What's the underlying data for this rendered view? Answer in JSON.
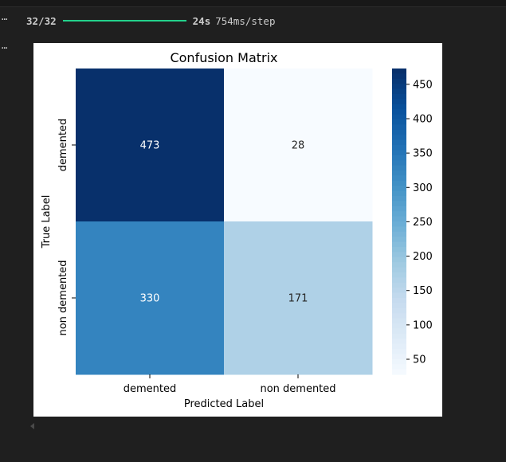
{
  "output": {
    "gutter_glyph": "⋯",
    "progress": {
      "steps": "32/32",
      "fraction": 1.0,
      "eta": "24s",
      "per_step": "754ms/step"
    }
  },
  "chart_data": {
    "type": "heatmap",
    "title": "Confusion Matrix",
    "xlabel": "Predicted Label",
    "ylabel": "True Label",
    "x_categories": [
      "demented",
      "non demented"
    ],
    "y_categories": [
      "demented",
      "non demented"
    ],
    "values": [
      [
        473,
        28
      ],
      [
        330,
        171
      ]
    ],
    "colormap": "Blues",
    "colorbar": {
      "vmin": 28,
      "vmax": 473,
      "ticks": [
        50,
        100,
        150,
        200,
        250,
        300,
        350,
        400,
        450
      ]
    },
    "colors": {
      "low": "#f7fbff",
      "high": "#08306b",
      "annot_dark": "#262626",
      "annot_light": "#ffffff"
    }
  }
}
